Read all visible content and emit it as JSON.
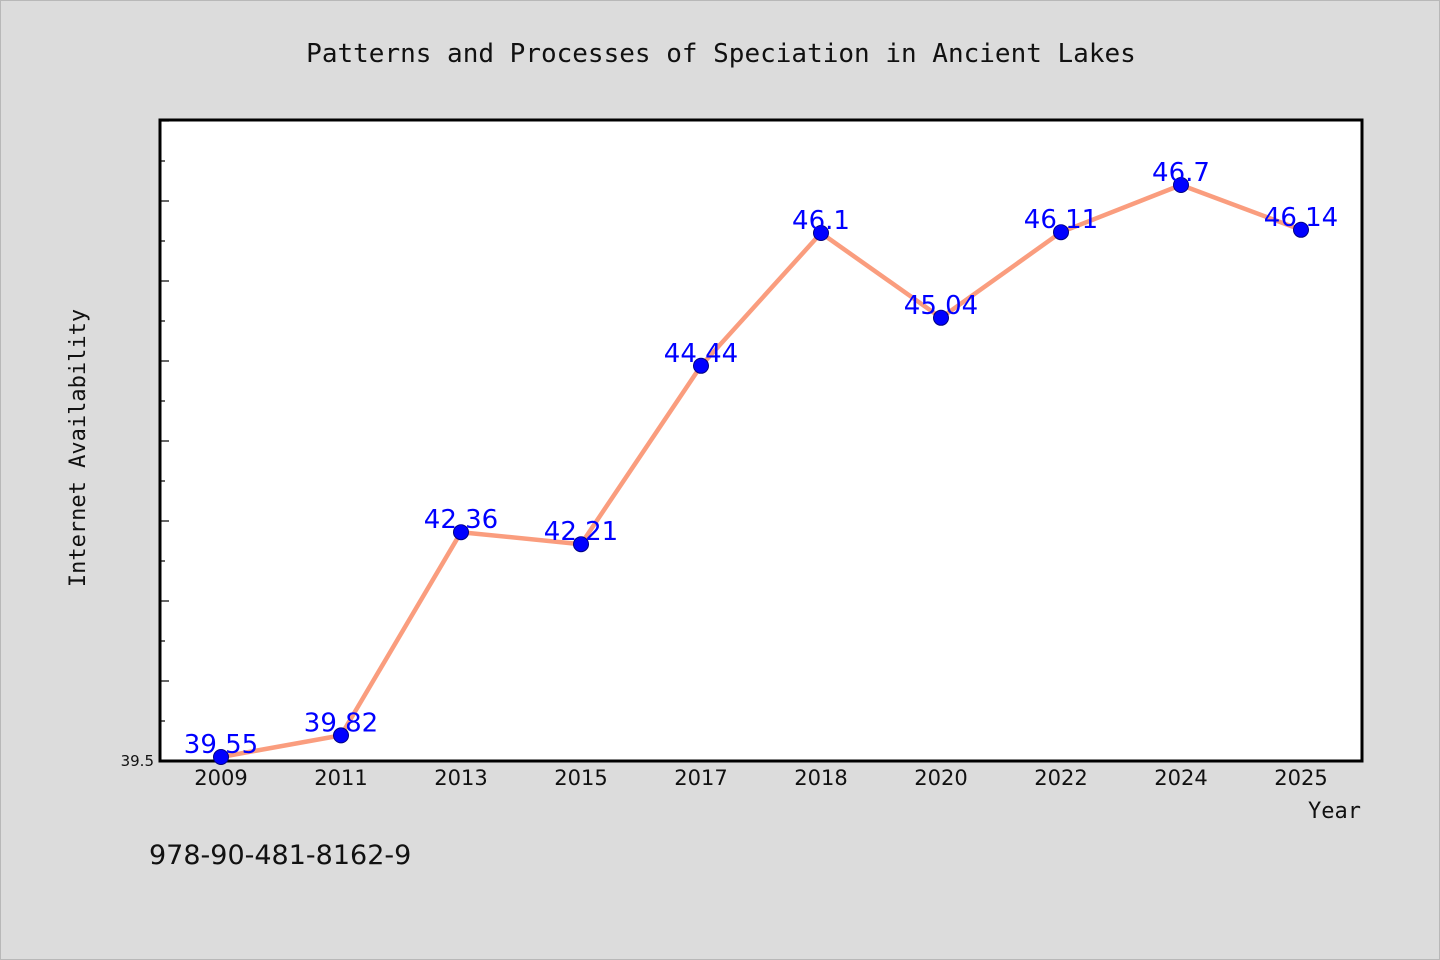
{
  "chart_data": {
    "type": "line",
    "title": "Patterns and Processes of Speciation in Ancient Lakes",
    "xlabel": "Year",
    "ylabel": "Internet Availability",
    "categories": [
      "2009",
      "2011",
      "2013",
      "2015",
      "2017",
      "2018",
      "2020",
      "2022",
      "2024",
      "2025"
    ],
    "series": [
      {
        "values": [
          39.55,
          39.82,
          42.36,
          42.21,
          44.44,
          46.1,
          45.04,
          46.11,
          46.7,
          46.14
        ],
        "data_labels": [
          "39.55",
          "39.82",
          "42.36",
          "42.21",
          "44.44",
          "46.1",
          "45.04",
          "46.11",
          "46.7",
          "46.14"
        ]
      }
    ],
    "ylim": [
      39.5,
      47.5
    ],
    "y_tick_labels": [
      "39.5"
    ],
    "grid": false,
    "legend": "none",
    "colors": {
      "line": "#fa9d7e",
      "marker": "#0000ff",
      "data_label": "#0000ff",
      "background": "#dcdcdc",
      "plot_area": "#ffffff"
    }
  },
  "footer": {
    "isbn": "978-90-481-8162-9"
  }
}
